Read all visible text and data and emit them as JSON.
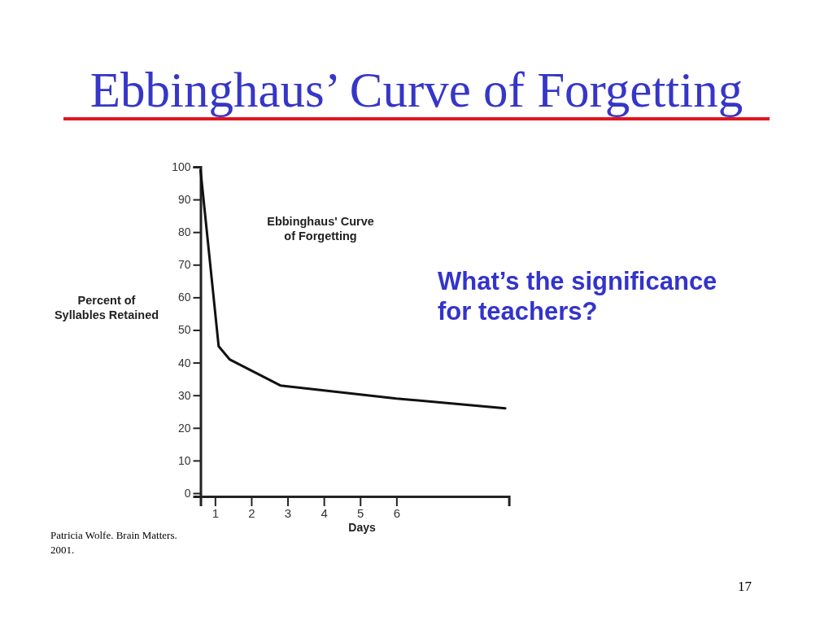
{
  "chart_data": {
    "type": "line",
    "title": "Ebbinghaus’ Curve of Forgetting",
    "subtitle": "Ebbinghaus' Curve of Forgetting",
    "xlabel": "Days",
    "ylabel": "Percent of Syllables Retained",
    "xlim": [
      0.6,
      9.1
    ],
    "xticks": [
      1,
      2,
      3,
      4,
      5,
      6
    ],
    "ylim": [
      -1,
      100
    ],
    "yticks": [
      0,
      10,
      20,
      30,
      40,
      50,
      60,
      70,
      80,
      90,
      100
    ],
    "series": [
      {
        "color": "#111111",
        "x": [
          0.6,
          1.1,
          1.4,
          2.1,
          2.8,
          6.0,
          9.0
        ],
        "values": [
          99,
          45,
          41,
          37,
          33,
          29,
          26
        ]
      }
    ],
    "annotations": [
      "What’s the significance for teachers?",
      "Patricia Wolfe.  Brain Matters. 2001.",
      "17"
    ]
  }
}
